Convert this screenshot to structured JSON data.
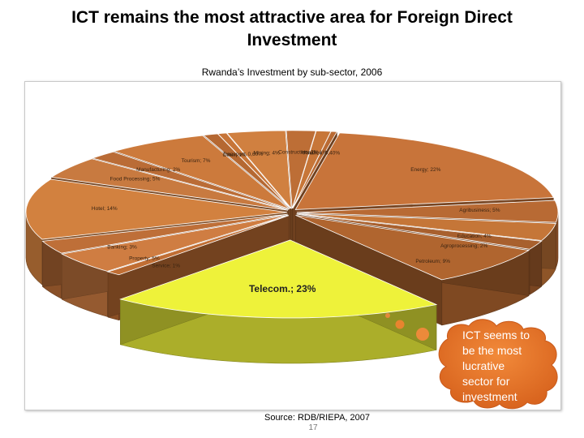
{
  "slide": {
    "title_line1": "ICT remains the most attractive area for Foreign Direct",
    "title_line2": "Investment",
    "subtitle": "Rwanda’s Investment by sub-sector, 2006",
    "source": "Source: RDB/RIEPA, 2007",
    "page_number": "17"
  },
  "callout": {
    "lines": [
      "ICT seems to",
      "be the most",
      "lucrative",
      "sector for",
      "investment"
    ],
    "color": "#e8772a"
  },
  "chart_data": {
    "type": "pie",
    "title": "Rwanda’s Investment by sub-sector, 2006",
    "three_d": true,
    "legend": "none",
    "slices": [
      {
        "label": "Energy",
        "value": 22,
        "display": "Energy; 22%",
        "color": "#c8743a"
      },
      {
        "label": "Agribusiness",
        "value": 5,
        "display": "Agribusiness; 5%",
        "color": "#b86a34"
      },
      {
        "label": "Education",
        "value": 4,
        "display": "Education; 4%",
        "color": "#c57638"
      },
      {
        "label": "Agroprocessing",
        "value": 2,
        "display": "Agroprocessing; 2%",
        "color": "#a8602e"
      },
      {
        "label": "Petroleum",
        "value": 9,
        "display": "Petroleum; 9%",
        "color": "#b0652f"
      },
      {
        "label": "Telecom.",
        "value": 23,
        "display": "Telecom.; 23%",
        "color": "#eef23a",
        "exploded": true
      },
      {
        "label": "Service",
        "value": 1,
        "display": "Service; 1%",
        "color": "#c06e34"
      },
      {
        "label": "Property",
        "value": 5,
        "display": "Property; 5%",
        "color": "#cf7d42"
      },
      {
        "label": "Banking",
        "value": 3,
        "display": "Banking; 3%",
        "color": "#be6f38"
      },
      {
        "label": "Hotel",
        "value": 14,
        "display": "Hotel; 14%",
        "color": "#d2813f"
      },
      {
        "label": "Food Processing",
        "value": 5,
        "display": "Food Processing; 5%",
        "color": "#c87a40"
      },
      {
        "label": "Manufacturing",
        "value": 2,
        "display": "Manufacturing; 2%",
        "color": "#ba6c36"
      },
      {
        "label": "Tourism",
        "value": 7,
        "display": "Tourism; 7%",
        "color": "#cc7a3c"
      },
      {
        "label": "Other",
        "value": 1,
        "display": "Other; 1%",
        "color": "#b56832"
      },
      {
        "label": "Transport",
        "value": 0.6,
        "display": "Transport; 0,60%",
        "color": "#c77538"
      },
      {
        "label": "Mining",
        "value": 4,
        "display": "Mining; 4%",
        "color": "#d08040"
      },
      {
        "label": "Construction",
        "value": 2,
        "display": "Construction; 2%",
        "color": "#bd6e36"
      },
      {
        "label": "Health",
        "value": 1,
        "display": "Health; 1%",
        "color": "#c77638"
      },
      {
        "label": "Finance",
        "value": 0.4,
        "display": "Finance; 0,40%",
        "color": "#b96a33"
      }
    ]
  }
}
